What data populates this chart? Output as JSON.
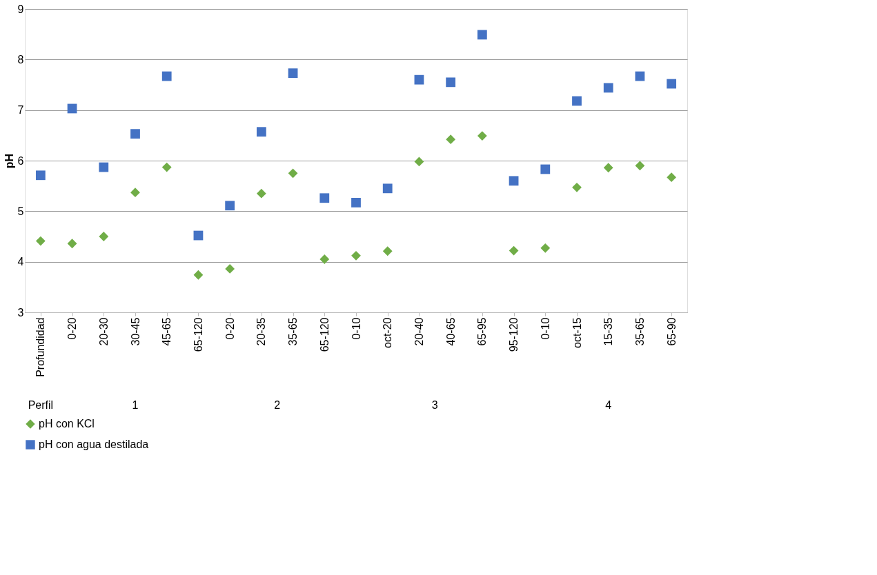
{
  "chart_data": {
    "type": "scatter",
    "ylabel": "pH",
    "categories": [
      "Profundidad",
      "0-20",
      "20-30",
      "30-45",
      "45-65",
      "65-120",
      "0-20",
      "20-35",
      "35-65",
      "65-120",
      "0-10",
      "oct-20",
      "20-40",
      "40-65",
      "65-95",
      "95-120",
      "0-10",
      "oct-15",
      "15-35",
      "35-65",
      "65-90"
    ],
    "series": [
      {
        "name": "pH con KCl",
        "color": "#70ad47",
        "marker": "diamond",
        "values": [
          4.41,
          4.36,
          4.5,
          5.37,
          5.87,
          3.74,
          3.86,
          5.35,
          5.75,
          4.05,
          4.12,
          4.21,
          5.98,
          6.42,
          6.49,
          4.22,
          4.27,
          5.47,
          5.86,
          5.9,
          5.67
        ]
      },
      {
        "name": "pH con agua destilada",
        "color": "#4472c4",
        "marker": "square",
        "values": [
          5.71,
          7.03,
          5.87,
          6.53,
          7.67,
          4.52,
          5.11,
          6.57,
          7.73,
          5.26,
          5.17,
          5.45,
          7.6,
          7.55,
          8.49,
          5.6,
          5.83,
          7.18,
          7.44,
          7.67,
          7.52
        ]
      }
    ],
    "ylim": [
      3,
      9
    ],
    "yticks": [
      3,
      4,
      5,
      6,
      7,
      8,
      9
    ],
    "grid": "y",
    "legend": "bottom",
    "annotations": [
      "Perfil",
      "1",
      "2",
      "3",
      "4"
    ]
  }
}
